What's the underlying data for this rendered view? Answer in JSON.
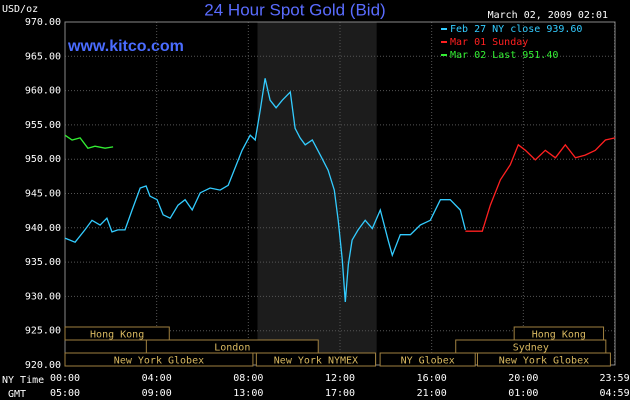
{
  "chart_data": {
    "type": "line",
    "title": "24 Hour Spot Gold (Bid)",
    "site": "www.kitco.com",
    "timestamp": "March 02, 2009 02:01",
    "y_label": "USD/oz",
    "x_row_labels": [
      "NY Time",
      "GMT"
    ],
    "xlim": [
      0,
      24
    ],
    "xticks": [
      {
        "value": 0,
        "label": "00:00"
      },
      {
        "value": 4,
        "label": "04:00"
      },
      {
        "value": 8,
        "label": "08:00"
      },
      {
        "value": 12,
        "label": "12:00"
      },
      {
        "value": 16,
        "label": "16:00"
      },
      {
        "value": 20,
        "label": "20:00"
      },
      {
        "value": 23.98,
        "label": "23:59"
      }
    ],
    "gmt_labels": [
      "05:00",
      "09:00",
      "13:00",
      "17:00",
      "21:00",
      "01:00",
      "04:59"
    ],
    "ylim": [
      920,
      970
    ],
    "yticks": [
      {
        "value": 920,
        "label": "920.00"
      },
      {
        "value": 925,
        "label": "925.00"
      },
      {
        "value": 930,
        "label": "930.00"
      },
      {
        "value": 935,
        "label": "935.00"
      },
      {
        "value": 940,
        "label": "940.00"
      },
      {
        "value": 945,
        "label": "945.00"
      },
      {
        "value": 950,
        "label": "950.00"
      },
      {
        "value": 955,
        "label": "955.00"
      },
      {
        "value": 960,
        "label": "960.00"
      },
      {
        "value": 965,
        "label": "965.00"
      },
      {
        "value": 970,
        "label": "970.00"
      }
    ],
    "grid": true,
    "highlight": [
      8.4,
      13.6
    ],
    "series": [
      {
        "name": "Feb 27 NY close 939.60",
        "color": "#33ccff",
        "x": [
          0,
          0.44,
          0.87,
          1.18,
          1.53,
          1.83,
          2.05,
          2.31,
          2.62,
          2.93,
          3.28,
          3.54,
          3.71,
          4.02,
          4.28,
          4.59,
          4.93,
          5.24,
          5.55,
          5.9,
          6.33,
          6.77,
          7.12,
          7.42,
          7.73,
          8.08,
          8.3,
          8.52,
          8.73,
          8.95,
          9.21,
          9.48,
          9.83,
          10.04,
          10.26,
          10.48,
          10.79,
          11.14,
          11.48,
          11.75,
          11.92,
          12.1,
          12.23,
          12.36,
          12.53,
          12.79,
          13.1,
          13.41,
          13.76,
          14.1,
          14.28,
          14.63,
          15.07,
          15.5,
          15.94,
          16.38,
          16.81,
          17.25,
          17.47
        ],
        "values": [
          938.5,
          937.9,
          939.7,
          941.1,
          940.4,
          941.4,
          939.4,
          939.7,
          939.7,
          942.6,
          945.8,
          946.1,
          944.6,
          944.1,
          941.9,
          941.4,
          943.3,
          944.1,
          942.6,
          945.1,
          945.8,
          945.5,
          946.2,
          948.7,
          951.3,
          953.5,
          952.8,
          957.2,
          961.8,
          958.6,
          957.5,
          958.6,
          959.8,
          954.5,
          953.1,
          952.1,
          952.8,
          950.6,
          948.4,
          945.5,
          941.1,
          935.3,
          929.2,
          934.6,
          938.2,
          939.7,
          941.1,
          939.9,
          942.6,
          938.2,
          936.0,
          939.0,
          939.0,
          940.4,
          941.1,
          944.1,
          944.1,
          942.6,
          939.7
        ]
      },
      {
        "name": "Mar 01 Sunday",
        "color": "#ff2020",
        "x": [
          17.47,
          18.21,
          18.56,
          19.0,
          19.43,
          19.78,
          20.09,
          20.52,
          20.96,
          21.4,
          21.83,
          22.27,
          22.7,
          23.14,
          23.58,
          24.0
        ],
        "values": [
          939.5,
          939.5,
          943.3,
          947.0,
          949.2,
          952.1,
          951.3,
          949.9,
          951.3,
          950.2,
          952.1,
          950.2,
          950.6,
          951.3,
          952.8,
          953.1
        ]
      },
      {
        "name": "Mar 02 Last 951.40",
        "color": "#33ee33",
        "x": [
          0,
          0.31,
          0.66,
          1.0,
          1.31,
          1.75,
          2.1
        ],
        "values": [
          953.5,
          952.8,
          953.1,
          951.6,
          951.9,
          951.6,
          951.8
        ]
      }
    ],
    "sessions": [
      [
        {
          "label": "Hong Kong",
          "start": 0,
          "end": 4.55
        },
        {
          "label": "Hong Kong",
          "start": 19.6,
          "end": 23.5
        }
      ],
      [
        {
          "label": "London",
          "start": 3.55,
          "end": 11.05
        },
        {
          "label": "Sydney",
          "start": 17.05,
          "end": 23.6
        }
      ],
      [
        {
          "label": "New York Globex",
          "start": 0,
          "end": 8.2
        },
        {
          "label": "New York NYMEX",
          "start": 8.35,
          "end": 13.55
        },
        {
          "label": "NY Globex",
          "start": 13.75,
          "end": 17.9
        },
        {
          "label": "New York Globex",
          "start": 18.0,
          "end": 23.8
        }
      ]
    ]
  }
}
